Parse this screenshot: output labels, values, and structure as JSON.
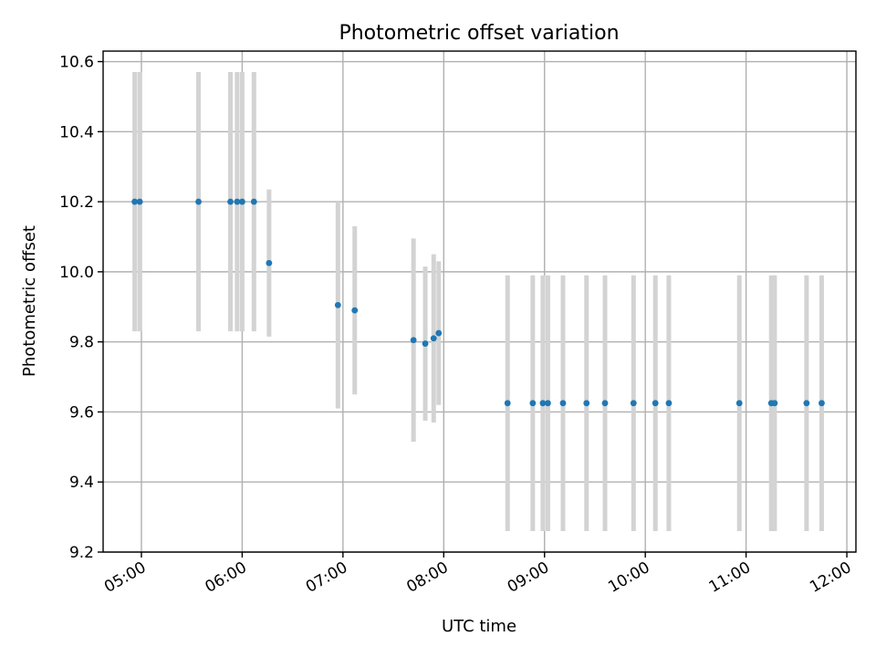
{
  "chart_data": {
    "type": "scatter",
    "title": "Photometric offset variation",
    "xlabel": "UTC time",
    "ylabel": "Photometric offset",
    "xlim_hours": [
      4.62,
      12.09
    ],
    "ylim": [
      9.2,
      10.63
    ],
    "x_ticks": [
      {
        "hour": 5,
        "label": "05:00"
      },
      {
        "hour": 6,
        "label": "06:00"
      },
      {
        "hour": 7,
        "label": "07:00"
      },
      {
        "hour": 8,
        "label": "08:00"
      },
      {
        "hour": 9,
        "label": "09:00"
      },
      {
        "hour": 10,
        "label": "10:00"
      },
      {
        "hour": 11,
        "label": "11:00"
      },
      {
        "hour": 12,
        "label": "12:00"
      }
    ],
    "y_ticks": [
      9.2,
      9.4,
      9.6,
      9.8,
      10.0,
      10.2,
      10.4,
      10.6
    ],
    "grid": true,
    "marker_color": "#1f77b4",
    "errorbar_color": "#d3d3d3",
    "points": [
      {
        "time": "04:56",
        "y": 10.2,
        "err": 0.37
      },
      {
        "time": "04:59",
        "y": 10.2,
        "err": 0.37
      },
      {
        "time": "05:34",
        "y": 10.2,
        "err": 0.37
      },
      {
        "time": "05:53",
        "y": 10.2,
        "err": 0.37
      },
      {
        "time": "05:57",
        "y": 10.2,
        "err": 0.37
      },
      {
        "time": "06:00",
        "y": 10.2,
        "err": 0.37
      },
      {
        "time": "06:07",
        "y": 10.2,
        "err": 0.37
      },
      {
        "time": "06:16",
        "y": 10.025,
        "err": 0.21
      },
      {
        "time": "06:57",
        "y": 9.905,
        "err": 0.295
      },
      {
        "time": "07:07",
        "y": 9.89,
        "err": 0.24
      },
      {
        "time": "07:42",
        "y": 9.805,
        "err": 0.29
      },
      {
        "time": "07:49",
        "y": 9.795,
        "err": 0.22
      },
      {
        "time": "07:54",
        "y": 9.81,
        "err": 0.24
      },
      {
        "time": "07:57",
        "y": 9.825,
        "err": 0.205
      },
      {
        "time": "08:38",
        "y": 9.625,
        "err": 0.365
      },
      {
        "time": "08:53",
        "y": 9.625,
        "err": 0.365
      },
      {
        "time": "08:59",
        "y": 9.625,
        "err": 0.365
      },
      {
        "time": "09:02",
        "y": 9.625,
        "err": 0.365
      },
      {
        "time": "09:11",
        "y": 9.625,
        "err": 0.365
      },
      {
        "time": "09:25",
        "y": 9.625,
        "err": 0.365
      },
      {
        "time": "09:36",
        "y": 9.625,
        "err": 0.365
      },
      {
        "time": "09:53",
        "y": 9.625,
        "err": 0.365
      },
      {
        "time": "10:06",
        "y": 9.625,
        "err": 0.365
      },
      {
        "time": "10:14",
        "y": 9.625,
        "err": 0.365
      },
      {
        "time": "10:56",
        "y": 9.625,
        "err": 0.365
      },
      {
        "time": "11:15",
        "y": 9.625,
        "err": 0.365
      },
      {
        "time": "11:17",
        "y": 9.625,
        "err": 0.365
      },
      {
        "time": "11:36",
        "y": 9.625,
        "err": 0.365
      },
      {
        "time": "11:45",
        "y": 9.625,
        "err": 0.365
      }
    ]
  }
}
